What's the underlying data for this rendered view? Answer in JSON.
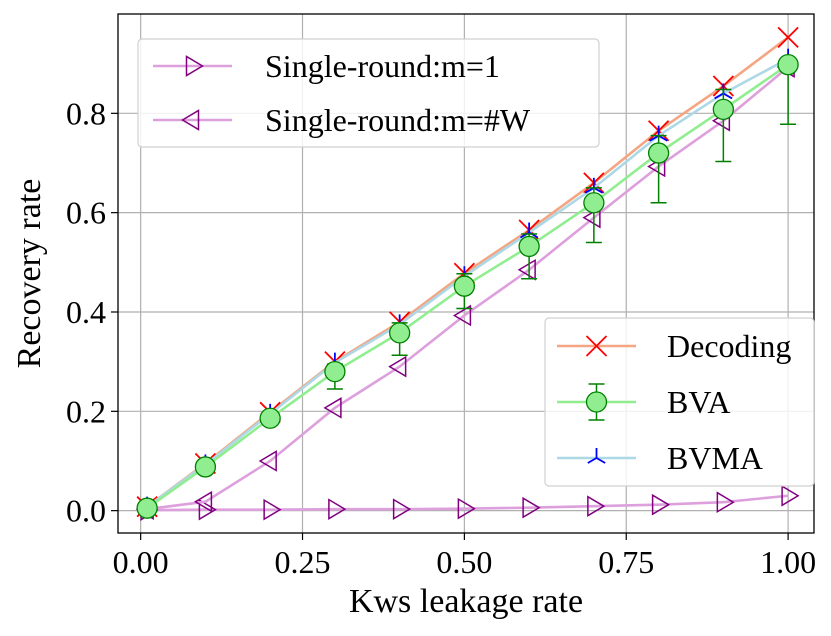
{
  "chart_data": {
    "type": "line",
    "xlabel": "Kws leakage rate",
    "ylabel": "Recovery rate",
    "xlim": [
      -0.035,
      1.04
    ],
    "ylim": [
      -0.045,
      1.0
    ],
    "xticks": [
      0.0,
      0.25,
      0.5,
      0.75,
      1.0
    ],
    "xtick_labels": [
      "0.00",
      "0.25",
      "0.50",
      "0.75",
      "1.00"
    ],
    "yticks": [
      0.0,
      0.2,
      0.4,
      0.6,
      0.8
    ],
    "ytick_labels": [
      "0.0",
      "0.2",
      "0.4",
      "0.6",
      "0.8"
    ],
    "grid": true,
    "x": [
      0.01,
      0.1,
      0.2,
      0.3,
      0.4,
      0.5,
      0.6,
      0.7,
      0.8,
      0.9,
      1.0
    ],
    "series": [
      {
        "name": "Decoding",
        "color": "#f4a582",
        "marker_color": "#ff0000",
        "marker": "x",
        "values": [
          0.008,
          0.095,
          0.198,
          0.3,
          0.38,
          0.478,
          0.565,
          0.66,
          0.765,
          0.855,
          0.953
        ]
      },
      {
        "name": "BVA",
        "color": "#90ee90",
        "marker_color": "#008000",
        "marker": "o",
        "values": [
          0.005,
          0.088,
          0.186,
          0.28,
          0.358,
          0.452,
          0.532,
          0.62,
          0.72,
          0.808,
          0.898
        ],
        "err_low": [
          0.005,
          0.008,
          0.012,
          0.035,
          0.045,
          0.045,
          0.065,
          0.08,
          0.1,
          0.105,
          0.12
        ],
        "err_high": [
          0.005,
          0.008,
          0.012,
          0.015,
          0.02,
          0.025,
          0.025,
          0.03,
          0.035,
          0.04,
          0.0
        ]
      },
      {
        "name": "BVMA",
        "color": "#add8e6",
        "marker_color": "#0000ff",
        "marker": "tri",
        "values": [
          0.008,
          0.093,
          0.195,
          0.298,
          0.375,
          0.472,
          0.56,
          0.65,
          0.755,
          0.84,
          0.91
        ]
      },
      {
        "name": "Single-round:m=1",
        "color": "#dda0dd",
        "marker_color": "#800080",
        "marker": "tri-right",
        "values": [
          0.001,
          0.002,
          0.002,
          0.003,
          0.003,
          0.004,
          0.006,
          0.009,
          0.012,
          0.017,
          0.03
        ]
      },
      {
        "name": "Single-round:m=#W",
        "color": "#dda0dd",
        "marker_color": "#800080",
        "marker": "tri-left",
        "values": [
          0.003,
          0.018,
          0.1,
          0.207,
          0.29,
          0.393,
          0.485,
          0.59,
          0.693,
          0.785,
          0.893
        ]
      }
    ],
    "legends": [
      {
        "position": "top-left",
        "entries": [
          "Single-round:m=1",
          "Single-round:m=#W"
        ]
      },
      {
        "position": "center-right",
        "entries": [
          "Decoding",
          "BVA",
          "BVMA"
        ]
      }
    ]
  }
}
